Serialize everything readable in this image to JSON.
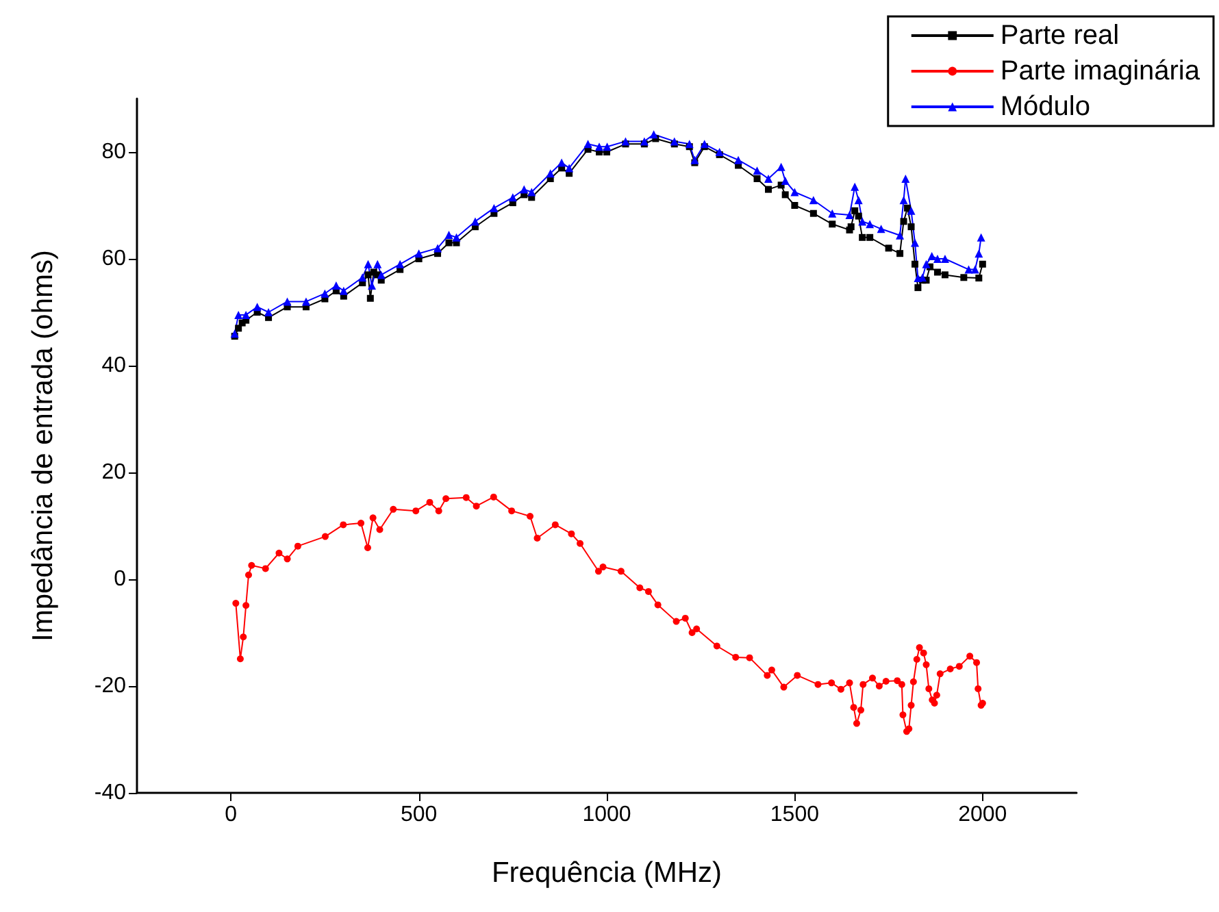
{
  "chart_data": {
    "type": "line",
    "xlabel": "Frequência (MHz)",
    "ylabel": "Impedância de entrada (ohms)",
    "xlim": [
      -250,
      2250
    ],
    "xticks": [
      0,
      500,
      1000,
      1500,
      2000
    ],
    "ylim": [
      -40,
      90
    ],
    "yticks": [
      -40,
      -20,
      0,
      20,
      40,
      60,
      80
    ],
    "grid": false,
    "legend": "top right",
    "line_style": "solid",
    "series": [
      {
        "name": "Parte real",
        "color": "#000000",
        "marker": "square",
        "x": [
          10,
          20,
          30,
          40,
          70,
          100,
          150,
          200,
          250,
          280,
          300,
          350,
          365,
          371,
          380,
          390,
          400,
          450,
          500,
          550,
          580,
          600,
          650,
          700,
          750,
          780,
          800,
          850,
          880,
          900,
          950,
          980,
          1000,
          1050,
          1100,
          1130,
          1180,
          1220,
          1234,
          1260,
          1300,
          1350,
          1400,
          1430,
          1464,
          1475,
          1500,
          1550,
          1600,
          1646,
          1650,
          1660,
          1670,
          1680,
          1700,
          1750,
          1780,
          1790,
          1800,
          1810,
          1820,
          1828,
          1840,
          1850,
          1860,
          1880,
          1900,
          1950,
          1990,
          2000
        ],
        "values": [
          45.5,
          47,
          48,
          48.5,
          50,
          49,
          51,
          51,
          52.5,
          54,
          53,
          55.5,
          57,
          52.6,
          57.5,
          57,
          56,
          58,
          60,
          61,
          63,
          63,
          66,
          68.5,
          70.5,
          72,
          71.5,
          75,
          77,
          76,
          80.5,
          80,
          80,
          81.5,
          81.5,
          82.5,
          81.5,
          81,
          78,
          81,
          79.5,
          77.5,
          75,
          73,
          73.8,
          72,
          70,
          68.5,
          66.5,
          65.4,
          66,
          69,
          68,
          64,
          64,
          62,
          61,
          67,
          69.5,
          66,
          59,
          54.6,
          56,
          56,
          58.5,
          57.5,
          57,
          56.5,
          56.4,
          59
        ]
      },
      {
        "name": "Parte imaginária",
        "color": "#ff0000",
        "marker": "circle",
        "x": [
          13,
          25,
          33,
          40,
          47,
          55,
          92,
          128,
          150,
          178,
          251,
          299,
          346,
          364,
          378,
          396,
          432,
          492,
          529,
          553,
          572,
          626,
          653,
          699,
          747,
          796,
          815,
          863,
          906,
          929,
          978,
          990,
          1038,
          1088,
          1111,
          1136,
          1185,
          1209,
          1227,
          1239,
          1293,
          1343,
          1380,
          1427,
          1439,
          1471,
          1507,
          1562,
          1598,
          1623,
          1646,
          1657,
          1665,
          1676,
          1682,
          1707,
          1725,
          1743,
          1773,
          1785,
          1788,
          1798,
          1804,
          1810,
          1816,
          1825,
          1832,
          1843,
          1850,
          1857,
          1866,
          1872,
          1878,
          1887,
          1914,
          1938,
          1966,
          1984,
          1988,
          1996,
          2000
        ],
        "values": [
          -4.5,
          -14.9,
          -10.8,
          -4.9,
          0.8,
          2.6,
          2,
          4.9,
          3.8,
          6.2,
          8,
          10.2,
          10.5,
          5.9,
          11.5,
          9.3,
          13.1,
          12.8,
          14.4,
          12.8,
          15.1,
          15.3,
          13.7,
          15.4,
          12.8,
          11.8,
          7.7,
          10.2,
          8.5,
          6.7,
          1.5,
          2.3,
          1.5,
          -1.6,
          -2.3,
          -4.8,
          -7.9,
          -7.3,
          -10,
          -9.3,
          -12.5,
          -14.6,
          -14.7,
          -18,
          -17,
          -20.2,
          -18,
          -19.7,
          -19.4,
          -20.6,
          -19.4,
          -24,
          -27,
          -24.5,
          -19.7,
          -18.5,
          -20,
          -19.1,
          -19,
          -19.7,
          -25.4,
          -28.5,
          -28,
          -23.6,
          -19.2,
          -15,
          -12.8,
          -13.8,
          -16,
          -20.5,
          -22.6,
          -23.2,
          -21.7,
          -17.7,
          -16.8,
          -16.3,
          -14.4,
          -15.6,
          -20.5,
          -23.6,
          -23.2
        ]
      },
      {
        "name": "Módulo",
        "color": "#0000ff",
        "marker": "triangle",
        "x": [
          10,
          20,
          40,
          70,
          100,
          150,
          200,
          250,
          280,
          300,
          350,
          365,
          375,
          390,
          400,
          450,
          500,
          550,
          580,
          600,
          650,
          700,
          750,
          780,
          800,
          850,
          880,
          900,
          950,
          980,
          1001,
          1050,
          1100,
          1125,
          1180,
          1220,
          1234,
          1260,
          1300,
          1350,
          1400,
          1430,
          1464,
          1475,
          1500,
          1550,
          1600,
          1646,
          1660,
          1670,
          1680,
          1700,
          1730,
          1780,
          1790,
          1795,
          1810,
          1820,
          1828,
          1840,
          1850,
          1865,
          1880,
          1900,
          1963,
          1980,
          1990,
          1996
        ],
        "values": [
          46,
          49.5,
          49.5,
          51,
          50,
          52,
          52,
          53.5,
          55,
          54,
          56.5,
          59,
          55,
          59,
          57,
          59,
          61,
          62,
          64.5,
          64,
          67,
          69.5,
          71.5,
          73,
          72.5,
          76,
          78,
          77,
          81.5,
          81,
          81,
          82,
          82,
          83.3,
          82,
          81.5,
          78.5,
          81.5,
          80,
          78.5,
          76.5,
          75,
          77.2,
          74.6,
          72.5,
          71,
          68.5,
          68.2,
          73.5,
          71,
          67,
          66.5,
          65.6,
          64.4,
          71,
          75,
          69,
          63,
          56.4,
          56.5,
          59,
          60.5,
          60,
          60,
          58,
          58,
          61,
          64
        ]
      }
    ]
  }
}
